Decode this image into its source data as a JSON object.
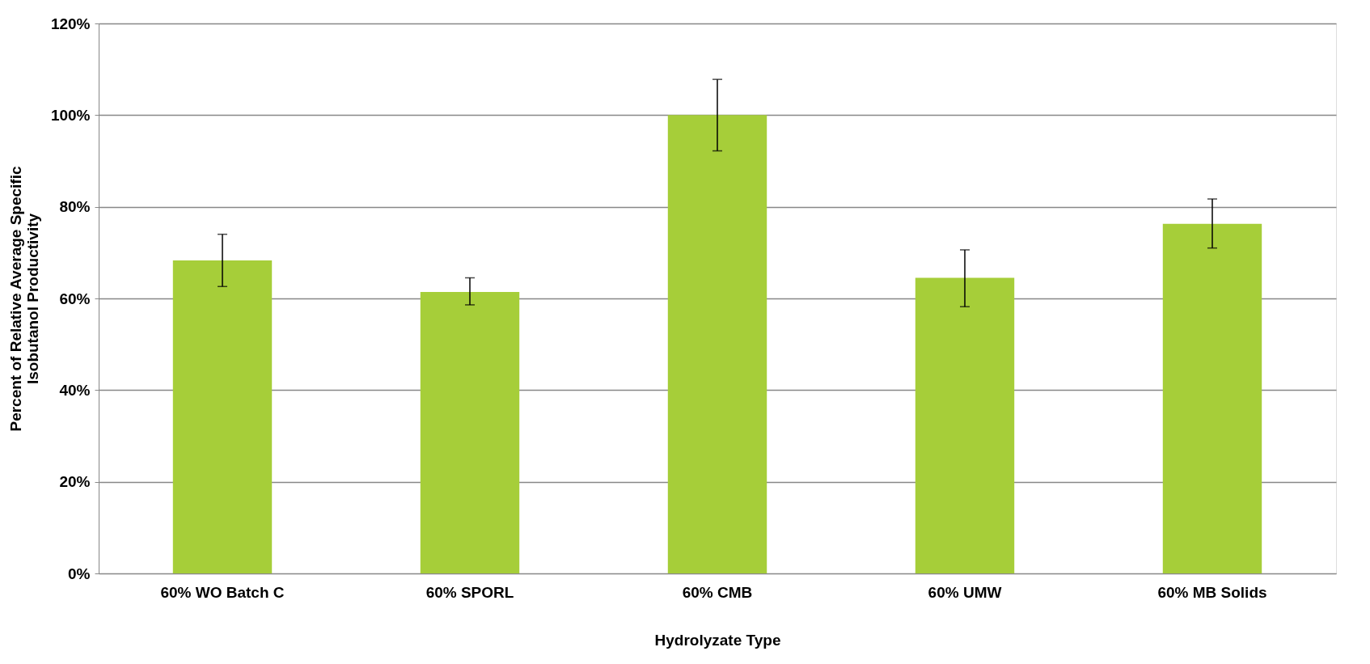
{
  "chart_data": {
    "type": "bar",
    "xlabel": "Hydrolyzate Type",
    "ylabel": "Percent of Relative Average Specific\nIsobutanol Productivity",
    "categories": [
      "60% WO Batch C",
      "60% SPORL",
      "60% CMB",
      "60% UMW",
      "60% MB Solids"
    ],
    "values": [
      68.3,
      61.4,
      100,
      64.5,
      76.3
    ],
    "errors": [
      [
        62.6,
        74.0
      ],
      [
        58.6,
        64.5
      ],
      [
        92.2,
        107.8
      ],
      [
        58.2,
        70.6
      ],
      [
        71.0,
        81.7
      ]
    ],
    "color": "#a6ce39",
    "ylim": [
      0,
      120
    ],
    "yticks": [
      {
        "value": 0,
        "label": "0%"
      },
      {
        "value": 20,
        "label": "20%"
      },
      {
        "value": 40,
        "label": "40%"
      },
      {
        "value": 60,
        "label": "60%"
      },
      {
        "value": 80,
        "label": "80%"
      },
      {
        "value": 100,
        "label": "100%"
      },
      {
        "value": 120,
        "label": "120%"
      }
    ],
    "grid": "y"
  }
}
